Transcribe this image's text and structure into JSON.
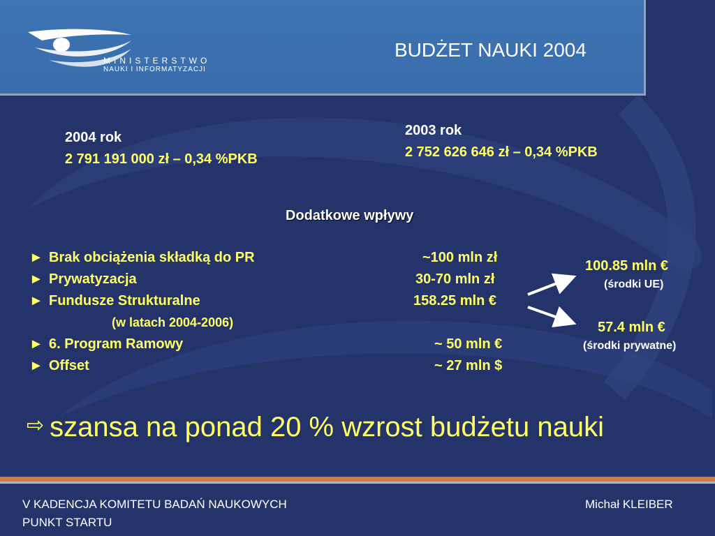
{
  "header": {
    "logo_line1": "MINISTERSTWO",
    "logo_line2": "NAUKI I INFORMATYZACJI",
    "title": "BUDŻET NAUKI 2004"
  },
  "year2004": {
    "label": "2004 rok",
    "value": "2 791 191 000 zł – 0,34 %PKB"
  },
  "year2003": {
    "label": "2003 rok",
    "value": "2 752 626 646 zł – 0,34 %PKB"
  },
  "section_heading": "Dodatkowe wpływy",
  "bullet_glyph": "►",
  "items": [
    {
      "label": "Brak obciążenia składką do PR",
      "amount": "~100 mln zł"
    },
    {
      "label": "Prywatyzacja",
      "amount": "30-70 mln zł"
    },
    {
      "label": "Fundusze Strukturalne",
      "amount": "158.25 mln €"
    },
    {
      "label": "6. Program Ramowy",
      "amount": "~ 50 mln €"
    },
    {
      "label": "Offset",
      "amount": "~ 27 mln $"
    }
  ],
  "structural_note": "(w latach 2004-2006)",
  "split": {
    "eu_amount": "100.85 mln €",
    "eu_label": "(środki UE)",
    "private_amount": "57.4 mln €",
    "private_label": "(środki prywatne)"
  },
  "conclusion": {
    "icon": "⇨",
    "text": "szansa na ponad 20 % wzrost budżetu nauki"
  },
  "footer": {
    "left_line1": "V KADENCJA KOMITETU BADAŃ NAUKOWYCH",
    "left_line2": "PUNKT STARTU",
    "right": "Michał KLEIBER"
  },
  "colors": {
    "background": "#24346a",
    "header": "#3d74b3",
    "accent_yellow": "#ffff66",
    "rule_orange": "#d47a3a"
  }
}
